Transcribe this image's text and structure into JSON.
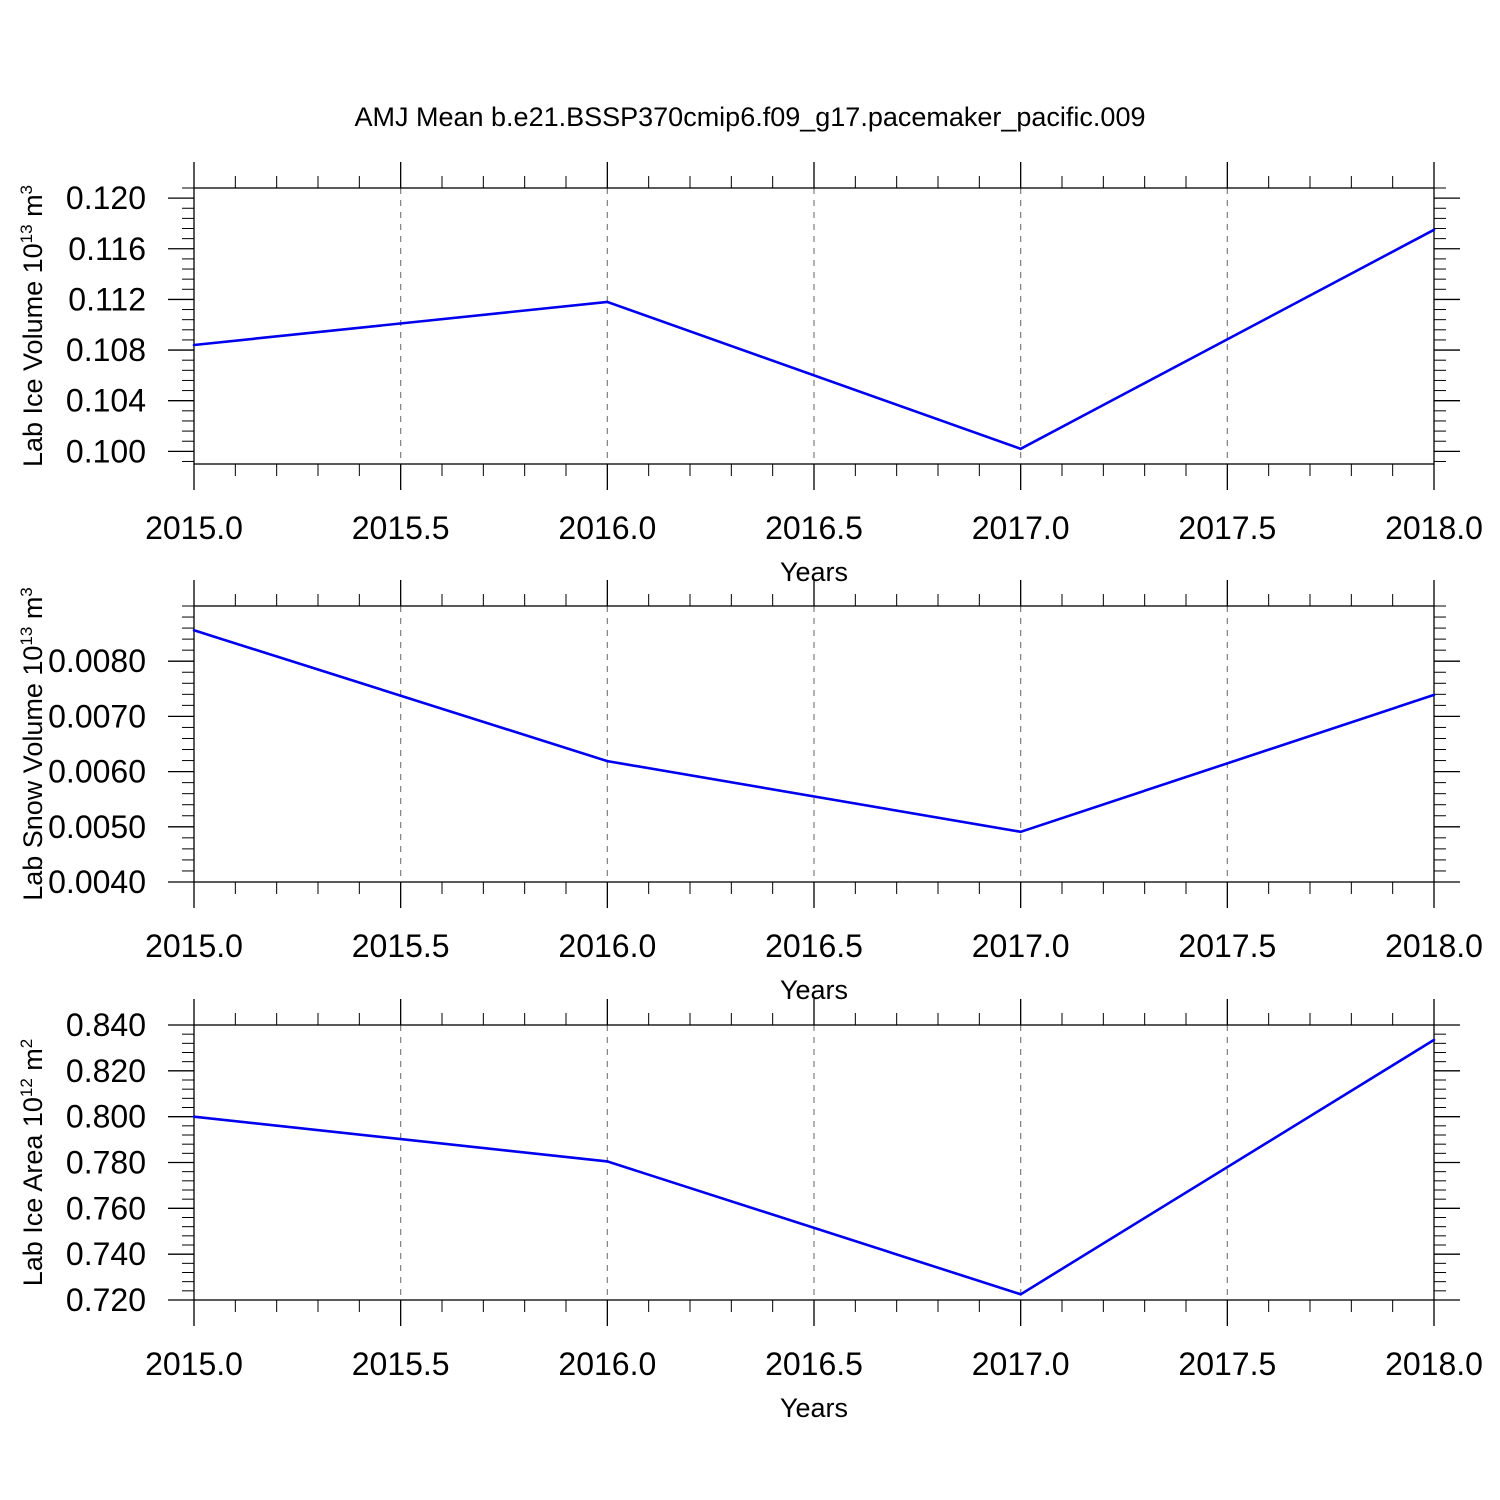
{
  "title": "AMJ Mean b.e21.BSSP370cmip6.f09_g17.pacemaker_pacific.009",
  "colors": {
    "line": "#0000ee",
    "axis": "#000000",
    "grid": "#7f7f7f",
    "background": "#ffffff"
  },
  "chart_data": [
    {
      "type": "line",
      "xlabel": "Years",
      "ylabel_main": "Lab Ice Volume 10",
      "ylabel_exp": "13",
      "ylabel_unit": "m",
      "ylabel_unit_exp": "3",
      "xlim": [
        2015.0,
        2018.0
      ],
      "ylim": [
        0.099,
        0.1208
      ],
      "x_ticks": [
        2015.0,
        2015.5,
        2016.0,
        2016.5,
        2017.0,
        2017.5,
        2018.0
      ],
      "x_tick_labels": [
        "2015.0",
        "2015.5",
        "2016.0",
        "2016.5",
        "2017.0",
        "2017.5",
        "2018.0"
      ],
      "y_ticks": [
        0.1,
        0.104,
        0.108,
        0.112,
        0.116,
        0.12
      ],
      "y_tick_labels": [
        "0.100",
        "0.104",
        "0.108",
        "0.112",
        "0.116",
        "0.120"
      ],
      "y_minor_step": 0.0008,
      "grid": "vertical dashed",
      "series": [
        {
          "x": [
            2015.0,
            2016.0,
            2017.0,
            2018.0
          ],
          "values": [
            0.1084,
            0.1118,
            0.1002,
            0.1175
          ]
        }
      ]
    },
    {
      "type": "line",
      "xlabel": "Years",
      "ylabel_main": "Lab Snow Volume 10",
      "ylabel_exp": "13",
      "ylabel_unit": "m",
      "ylabel_unit_exp": "3",
      "xlim": [
        2015.0,
        2018.0
      ],
      "ylim": [
        0.004,
        0.009
      ],
      "x_ticks": [
        2015.0,
        2015.5,
        2016.0,
        2016.5,
        2017.0,
        2017.5,
        2018.0
      ],
      "x_tick_labels": [
        "2015.0",
        "2015.5",
        "2016.0",
        "2016.5",
        "2017.0",
        "2017.5",
        "2018.0"
      ],
      "y_ticks": [
        0.004,
        0.005,
        0.006,
        0.007,
        0.008
      ],
      "y_tick_labels": [
        "0.0040",
        "0.0050",
        "0.0060",
        "0.0070",
        "0.0080"
      ],
      "y_minor_step": 0.0002,
      "grid": "vertical dashed",
      "series": [
        {
          "x": [
            2015.0,
            2016.0,
            2017.0,
            2018.0
          ],
          "values": [
            0.00856,
            0.00619,
            0.00491,
            0.00739
          ]
        }
      ]
    },
    {
      "type": "line",
      "xlabel": "Years",
      "ylabel_main": "Lab Ice Area 10",
      "ylabel_exp": "12",
      "ylabel_unit": "m",
      "ylabel_unit_exp": "2",
      "xlim": [
        2015.0,
        2018.0
      ],
      "ylim": [
        0.72,
        0.84
      ],
      "x_ticks": [
        2015.0,
        2015.5,
        2016.0,
        2016.5,
        2017.0,
        2017.5,
        2018.0
      ],
      "x_tick_labels": [
        "2015.0",
        "2015.5",
        "2016.0",
        "2016.5",
        "2017.0",
        "2017.5",
        "2018.0"
      ],
      "y_ticks": [
        0.72,
        0.74,
        0.76,
        0.78,
        0.8,
        0.82,
        0.84
      ],
      "y_tick_labels": [
        "0.720",
        "0.740",
        "0.760",
        "0.780",
        "0.800",
        "0.820",
        "0.840"
      ],
      "y_minor_step": 0.004,
      "grid": "vertical dashed",
      "series": [
        {
          "x": [
            2015.0,
            2016.0,
            2017.0,
            2018.0
          ],
          "values": [
            0.8,
            0.7805,
            0.7225,
            0.8335
          ]
        }
      ]
    }
  ]
}
